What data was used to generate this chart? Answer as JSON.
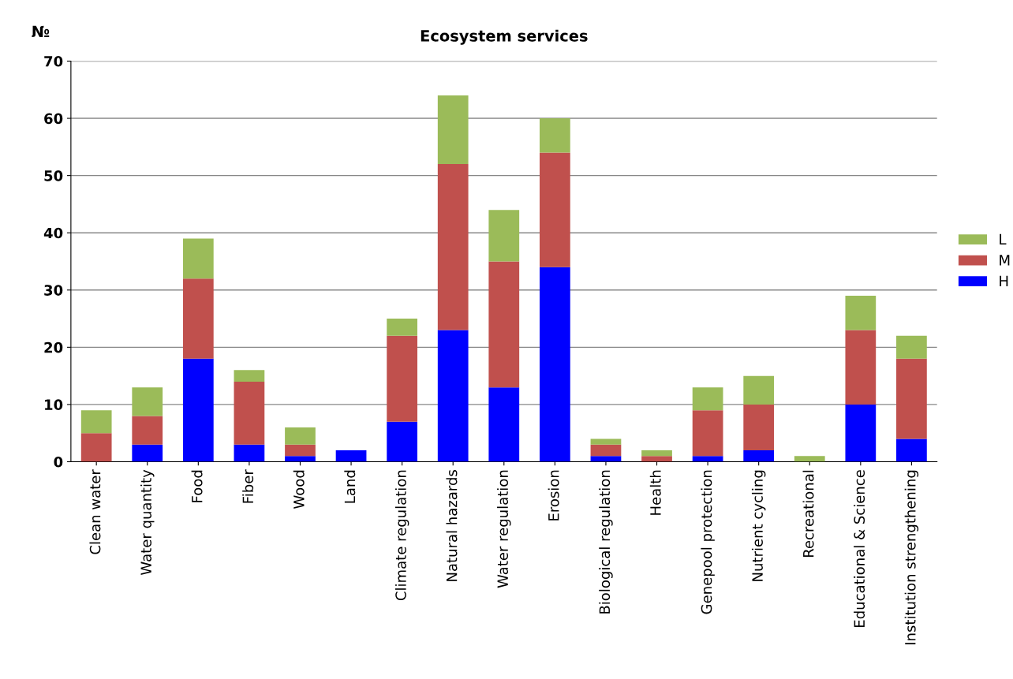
{
  "chart_data": {
    "type": "bar",
    "title": "Ecosystem services",
    "ylabel": "№",
    "stacked": true,
    "categories": [
      "Clean water",
      "Water quantity",
      "Food",
      "Fiber",
      "Wood",
      "Land",
      "Climate regulation",
      "Natural hazards",
      "Water regulation",
      "Erosion",
      "Biological regulation",
      "Health",
      "Genepool protection",
      "Nutrient cycling",
      "Recreational",
      "Educational & Science",
      "Institution strengthening"
    ],
    "series": [
      {
        "name": "H",
        "color": "#0000ff",
        "values": [
          0,
          3,
          18,
          3,
          1,
          2,
          7,
          23,
          13,
          34,
          1,
          0,
          1,
          2,
          0,
          10,
          4
        ]
      },
      {
        "name": "M",
        "color": "#c0504d",
        "values": [
          5,
          5,
          14,
          11,
          2,
          0,
          15,
          29,
          22,
          20,
          2,
          1,
          8,
          8,
          0,
          13,
          14
        ]
      },
      {
        "name": "L",
        "color": "#9bbb59",
        "values": [
          4,
          5,
          7,
          2,
          3,
          0,
          3,
          12,
          9,
          6,
          1,
          1,
          4,
          5,
          1,
          6,
          4
        ]
      }
    ],
    "ylim": [
      0,
      70
    ],
    "yticks": [
      0,
      10,
      20,
      30,
      40,
      50,
      60,
      70
    ],
    "grid": "y",
    "legend": "right"
  }
}
